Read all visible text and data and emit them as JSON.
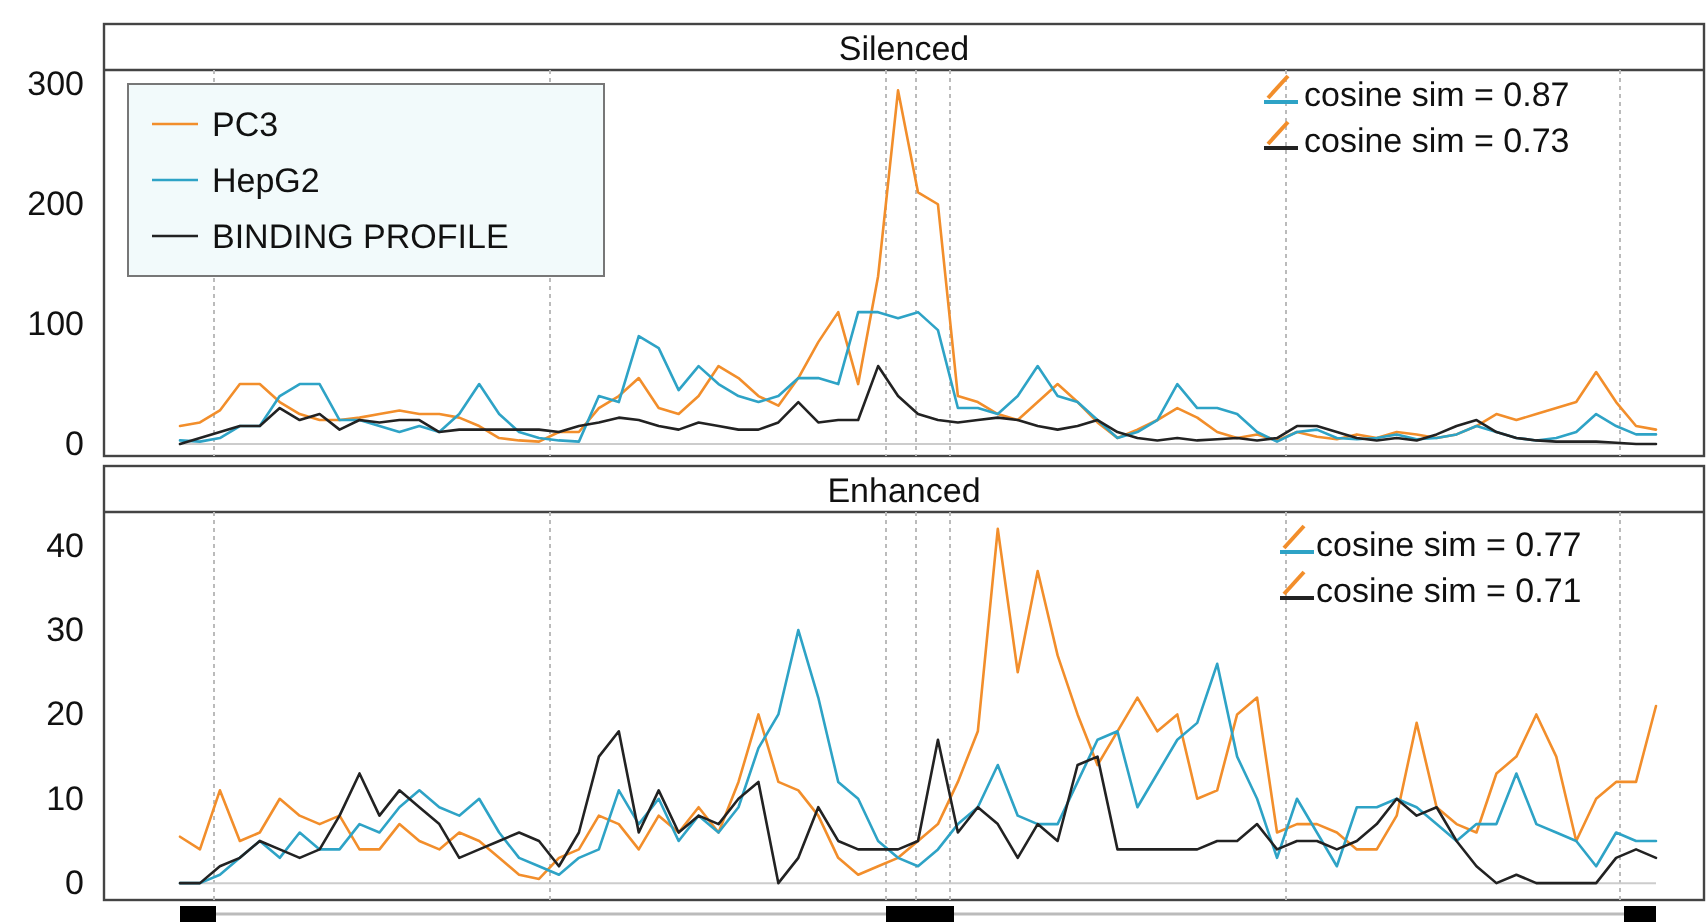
{
  "chart_data": [
    {
      "type": "line",
      "title": "Silenced",
      "categories": [
        null,
        null,
        null,
        null,
        null,
        null,
        null,
        null,
        null,
        null,
        null,
        null,
        null,
        null,
        null,
        null,
        null,
        null,
        null,
        null,
        null,
        null,
        null,
        null,
        null,
        null,
        null,
        null,
        null,
        null,
        null,
        null,
        null,
        null,
        null,
        null,
        null,
        null,
        null,
        null,
        null,
        null,
        null,
        null,
        null,
        null,
        null,
        null,
        null,
        null,
        null,
        null,
        null,
        null,
        null,
        null,
        null,
        null,
        null,
        null,
        null,
        null,
        null,
        null,
        null,
        null,
        null,
        null,
        null,
        null,
        null,
        null,
        null,
        null,
        null
      ],
      "series": [
        {
          "name": "PC3",
          "color": "#f28e2b",
          "values": [
            15,
            18,
            28,
            50,
            50,
            35,
            25,
            20,
            20,
            22,
            25,
            28,
            25,
            25,
            22,
            15,
            5,
            3,
            2,
            10,
            10,
            30,
            40,
            55,
            30,
            25,
            40,
            65,
            55,
            40,
            32,
            55,
            85,
            110,
            50,
            140,
            295,
            210,
            200,
            40,
            35,
            25,
            20,
            35,
            50,
            35,
            18,
            5,
            12,
            20,
            30,
            22,
            10,
            5,
            8,
            3,
            10,
            6,
            4,
            8,
            5,
            10,
            8,
            5,
            8,
            15,
            25,
            20,
            25,
            30,
            35,
            60,
            35,
            15,
            12
          ]
        },
        {
          "name": "HepG2",
          "color": "#2ea3c6",
          "values": [
            3,
            2,
            5,
            15,
            15,
            40,
            50,
            50,
            20,
            20,
            15,
            10,
            15,
            10,
            25,
            50,
            25,
            10,
            5,
            3,
            2,
            40,
            35,
            90,
            80,
            45,
            65,
            50,
            40,
            35,
            40,
            55,
            55,
            50,
            110,
            110,
            105,
            110,
            95,
            30,
            30,
            25,
            40,
            65,
            40,
            35,
            20,
            5,
            10,
            20,
            50,
            30,
            30,
            25,
            10,
            2,
            10,
            12,
            5,
            4,
            5,
            8,
            4,
            5,
            8,
            15,
            10,
            5,
            3,
            5,
            10,
            25,
            15,
            8,
            8
          ]
        },
        {
          "name": "BINDING PROFILE",
          "color": "#222222",
          "values": [
            0,
            5,
            10,
            15,
            15,
            30,
            20,
            25,
            12,
            20,
            18,
            20,
            20,
            10,
            12,
            12,
            12,
            12,
            12,
            10,
            15,
            18,
            22,
            20,
            15,
            12,
            18,
            15,
            12,
            12,
            18,
            35,
            18,
            20,
            20,
            65,
            40,
            25,
            20,
            18,
            20,
            22,
            20,
            15,
            12,
            15,
            20,
            10,
            5,
            3,
            5,
            3,
            4,
            5,
            3,
            5,
            15,
            15,
            10,
            5,
            3,
            5,
            3,
            8,
            15,
            20,
            10,
            5,
            3,
            2,
            2,
            2,
            1,
            0,
            0
          ]
        }
      ],
      "ylim": [
        -10,
        312
      ],
      "yticks": [
        0,
        100,
        200,
        300
      ],
      "tick_labels": "y",
      "legend": "top left",
      "ref_lines": [
        {
          "axis": "y",
          "value": 0,
          "color": "#cccccc",
          "line_style": "solid"
        }
      ],
      "annotations": [
        "cosine sim = 0.87",
        "cosine sim = 0.73"
      ]
    },
    {
      "type": "line",
      "title": "Enhanced",
      "categories": [
        null,
        null,
        null,
        null,
        null,
        null,
        null,
        null,
        null,
        null,
        null,
        null,
        null,
        null,
        null,
        null,
        null,
        null,
        null,
        null,
        null,
        null,
        null,
        null,
        null,
        null,
        null,
        null,
        null,
        null,
        null,
        null,
        null,
        null,
        null,
        null,
        null,
        null,
        null,
        null,
        null,
        null,
        null,
        null,
        null,
        null,
        null,
        null,
        null,
        null,
        null,
        null,
        null,
        null,
        null,
        null,
        null,
        null,
        null,
        null,
        null,
        null,
        null,
        null,
        null,
        null,
        null,
        null,
        null,
        null,
        null,
        null,
        null,
        null,
        null
      ],
      "series": [
        {
          "color": "#f28e2b",
          "values": [
            5.5,
            4,
            11,
            5,
            6,
            10,
            8,
            7,
            8,
            4,
            4,
            7,
            5,
            4,
            6,
            5,
            3,
            1,
            0.5,
            3,
            4,
            8,
            7,
            4,
            8,
            6,
            9,
            6,
            12,
            20,
            12,
            11,
            8,
            3,
            1,
            2,
            3,
            5,
            7,
            12,
            18,
            42,
            25,
            37,
            27,
            20,
            14,
            18,
            22,
            18,
            20,
            10,
            11,
            20,
            22,
            6,
            7,
            7,
            6,
            4,
            4,
            8,
            19,
            9,
            7,
            6,
            13,
            15,
            20,
            15,
            5,
            10,
            12,
            12,
            21
          ]
        },
        {
          "color": "#2ea3c6",
          "values": [
            0,
            0,
            1,
            3,
            5,
            3,
            6,
            4,
            4,
            7,
            6,
            9,
            11,
            9,
            8,
            10,
            6,
            3,
            2,
            1,
            3,
            4,
            11,
            7,
            10,
            5,
            8,
            6,
            9,
            16,
            20,
            30,
            22,
            12,
            10,
            5,
            3,
            2,
            4,
            7,
            9,
            14,
            8,
            7,
            7,
            12,
            17,
            18,
            9,
            13,
            17,
            19,
            26,
            15,
            10,
            3,
            10,
            6,
            2,
            9,
            9,
            10,
            9,
            7,
            5,
            7,
            7,
            13,
            7,
            6,
            5,
            2,
            6,
            5,
            5
          ]
        },
        {
          "color": "#222222",
          "values": [
            0,
            0,
            2,
            3,
            5,
            4,
            3,
            4,
            8,
            13,
            8,
            11,
            9,
            7,
            3,
            4,
            5,
            6,
            5,
            2,
            6,
            15,
            18,
            6,
            11,
            6,
            8,
            7,
            10,
            12,
            0,
            3,
            9,
            5,
            4,
            4,
            4,
            5,
            17,
            6,
            9,
            7,
            3,
            7,
            5,
            14,
            15,
            4,
            4,
            4,
            4,
            4,
            5,
            5,
            7,
            4,
            5,
            5,
            4,
            5,
            7,
            10,
            8,
            9,
            5,
            2,
            0,
            1,
            0,
            0,
            0,
            0,
            3,
            4,
            3
          ]
        }
      ],
      "ylim": [
        -2,
        44
      ],
      "yticks": [
        0,
        10,
        20,
        30,
        40
      ],
      "tick_labels": "y",
      "ref_lines": [
        {
          "axis": "y",
          "value": 0,
          "color": "#cccccc",
          "line_style": "solid"
        }
      ],
      "annotations": [
        "cosine sim = 0.77",
        "cosine sim = 0.71"
      ]
    }
  ]
}
